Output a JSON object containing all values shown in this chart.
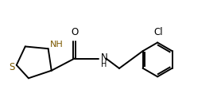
{
  "bg_color": "#ffffff",
  "line_color": "#000000",
  "nh_color": "#7B5800",
  "s_color": "#7B5800",
  "line_width": 1.4,
  "font_size": 8.5,
  "figsize": [
    2.78,
    1.32
  ],
  "dpi": 100,
  "xlim": [
    0,
    10
  ],
  "ylim": [
    0,
    4.75
  ]
}
